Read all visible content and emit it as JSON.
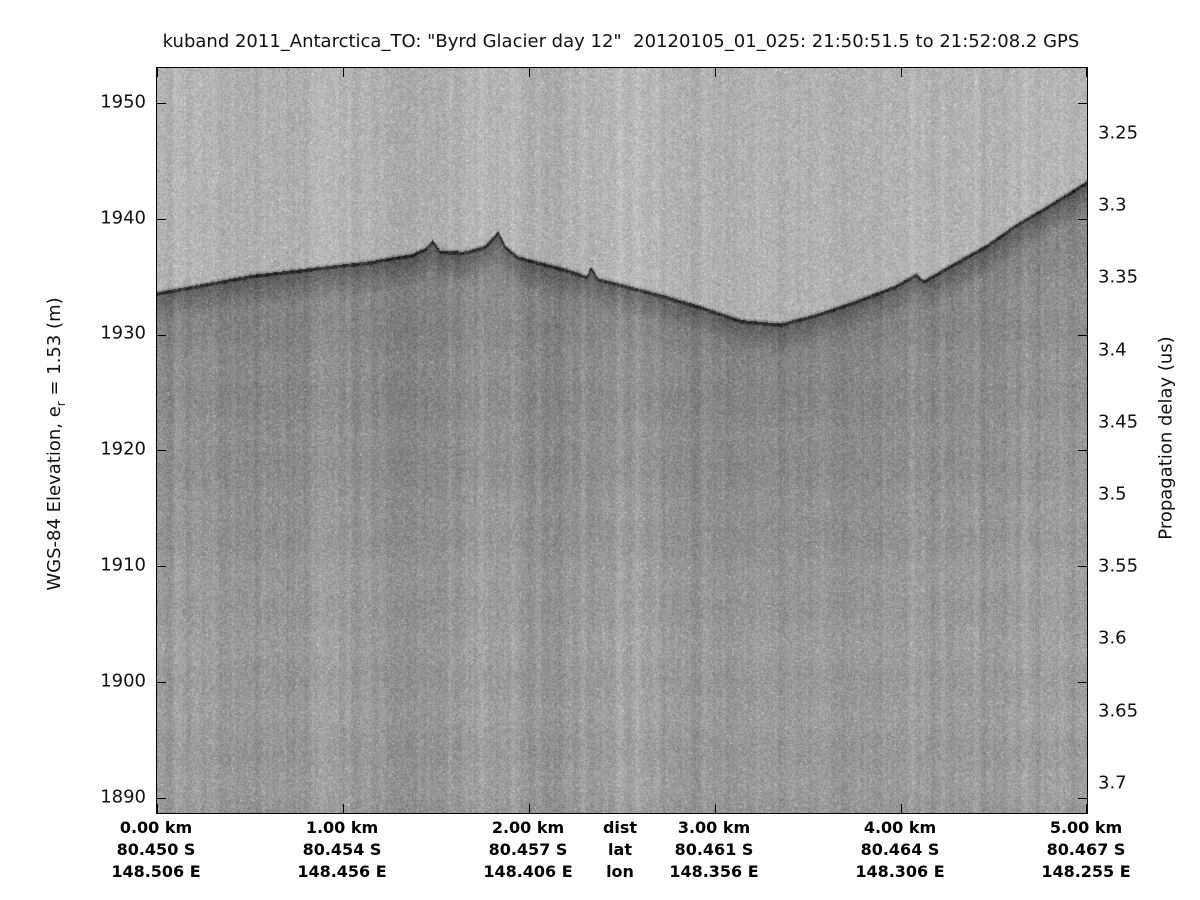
{
  "figure": {
    "title": "kuband 2011_Antarctica_TO: \"Byrd Glacier day 12\"  20120105_01_025: 21:50:51.5 to 21:52:08.2 GPS"
  },
  "left_axis": {
    "label_prefix": "WGS-84 Elevation, e",
    "label_sub": "r",
    "label_suffix": " = 1.53 (m)",
    "ticks": [
      "1950",
      "1940",
      "1930",
      "1920",
      "1910",
      "1900",
      "1890"
    ]
  },
  "right_axis": {
    "label": "Propagation delay (us)",
    "ticks": [
      "3.25",
      "3.3",
      "3.35",
      "3.4",
      "3.45",
      "3.5",
      "3.55",
      "3.6",
      "3.65",
      "3.7"
    ]
  },
  "bottom_axis": {
    "legend": {
      "dist": "dist",
      "lat": "lat",
      "lon": "lon"
    },
    "columns": [
      {
        "dist": "0.00 km",
        "lat": "80.450 S",
        "lon": "148.506 E"
      },
      {
        "dist": "1.00 km",
        "lat": "80.454 S",
        "lon": "148.456 E"
      },
      {
        "dist": "2.00 km",
        "lat": "80.457 S",
        "lon": "148.406 E"
      },
      {
        "dist": "3.00 km",
        "lat": "80.461 S",
        "lon": "148.356 E"
      },
      {
        "dist": "4.00 km",
        "lat": "80.464 S",
        "lon": "148.306 E"
      },
      {
        "dist": "5.00 km",
        "lat": "80.467 S",
        "lon": "148.255 E"
      }
    ]
  },
  "chart_data": {
    "type": "heatmap",
    "subtype": "radar-echogram",
    "title": "kuband 2011_Antarctica_TO: \"Byrd Glacier day 12\"  20120105_01_025: 21:50:51.5 to 21:52:08.2 GPS",
    "xlabel_rows": [
      "dist",
      "lat",
      "lon"
    ],
    "left_ylabel": "WGS-84 Elevation, e_r = 1.53 (m)",
    "right_ylabel": "Propagation delay (us)",
    "x_ticks_km": [
      0,
      1,
      2,
      3,
      4,
      5
    ],
    "x_tick_lat": [
      "80.450 S",
      "80.454 S",
      "80.457 S",
      "80.461 S",
      "80.464 S",
      "80.467 S"
    ],
    "x_tick_lon": [
      "148.506 E",
      "148.456 E",
      "148.406 E",
      "148.356 E",
      "148.306 E",
      "148.255 E"
    ],
    "elevation_ticks_m": [
      1950,
      1940,
      1930,
      1920,
      1910,
      1900,
      1890
    ],
    "delay_ticks_us": [
      3.25,
      3.3,
      3.35,
      3.4,
      3.45,
      3.5,
      3.55,
      3.6,
      3.65,
      3.7
    ],
    "elevation_range_m": [
      1888.7,
      1953.0
    ],
    "delay_range_us": [
      3.204,
      3.722
    ],
    "grid": false,
    "colors": {
      "above_surface_gray": "#b2b2b2",
      "surface_echo_gray": "#404040",
      "below_surface_gray": "#8e8e8e",
      "deep_gray": "#9a9a9a",
      "axis": "#000000"
    },
    "surface_profile": [
      {
        "dist_km": 0.0,
        "elevation_m": 1933.7
      },
      {
        "dist_km": 0.24,
        "elevation_m": 1934.4
      },
      {
        "dist_km": 0.51,
        "elevation_m": 1935.2
      },
      {
        "dist_km": 0.83,
        "elevation_m": 1935.8
      },
      {
        "dist_km": 1.15,
        "elevation_m": 1936.4
      },
      {
        "dist_km": 1.37,
        "elevation_m": 1937.0
      },
      {
        "dist_km": 1.44,
        "elevation_m": 1937.5
      },
      {
        "dist_km": 1.48,
        "elevation_m": 1938.2
      },
      {
        "dist_km": 1.52,
        "elevation_m": 1937.3
      },
      {
        "dist_km": 1.65,
        "elevation_m": 1937.2
      },
      {
        "dist_km": 1.76,
        "elevation_m": 1937.7
      },
      {
        "dist_km": 1.81,
        "elevation_m": 1938.5
      },
      {
        "dist_km": 1.83,
        "elevation_m": 1939.0
      },
      {
        "dist_km": 1.87,
        "elevation_m": 1937.7
      },
      {
        "dist_km": 1.94,
        "elevation_m": 1936.8
      },
      {
        "dist_km": 2.06,
        "elevation_m": 1936.3
      },
      {
        "dist_km": 2.2,
        "elevation_m": 1935.7
      },
      {
        "dist_km": 2.31,
        "elevation_m": 1935.1
      },
      {
        "dist_km": 2.33,
        "elevation_m": 1935.9
      },
      {
        "dist_km": 2.37,
        "elevation_m": 1934.9
      },
      {
        "dist_km": 2.52,
        "elevation_m": 1934.3
      },
      {
        "dist_km": 2.71,
        "elevation_m": 1933.5
      },
      {
        "dist_km": 2.92,
        "elevation_m": 1932.5
      },
      {
        "dist_km": 3.14,
        "elevation_m": 1931.3
      },
      {
        "dist_km": 3.35,
        "elevation_m": 1931.0
      },
      {
        "dist_km": 3.54,
        "elevation_m": 1931.8
      },
      {
        "dist_km": 3.76,
        "elevation_m": 1933.0
      },
      {
        "dist_km": 3.97,
        "elevation_m": 1934.3
      },
      {
        "dist_km": 4.08,
        "elevation_m": 1935.3
      },
      {
        "dist_km": 4.12,
        "elevation_m": 1934.7
      },
      {
        "dist_km": 4.27,
        "elevation_m": 1936.1
      },
      {
        "dist_km": 4.46,
        "elevation_m": 1937.8
      },
      {
        "dist_km": 4.62,
        "elevation_m": 1939.6
      },
      {
        "dist_km": 4.78,
        "elevation_m": 1941.1
      },
      {
        "dist_km": 5.0,
        "elevation_m": 1943.3
      }
    ]
  }
}
